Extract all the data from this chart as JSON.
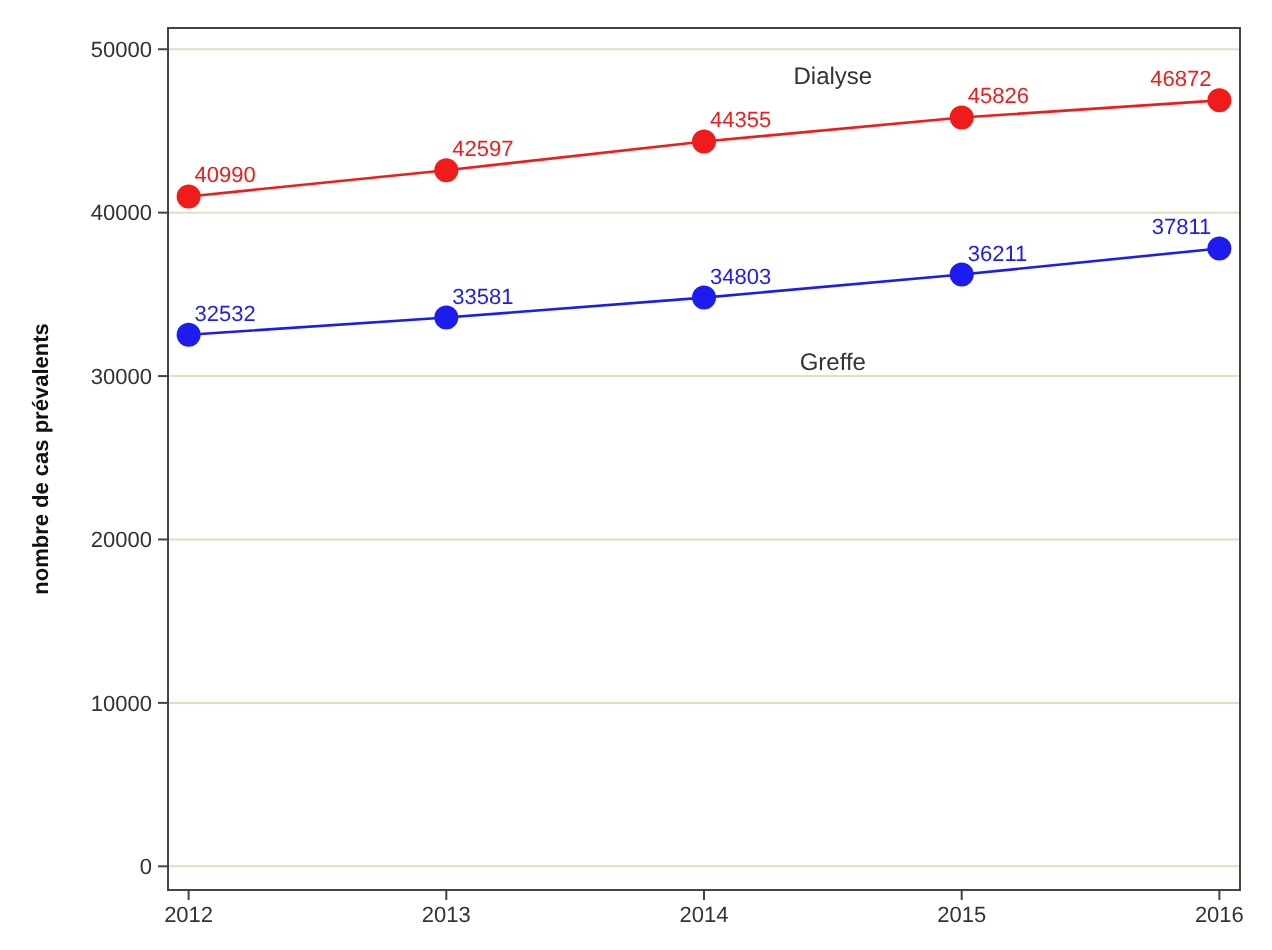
{
  "chart_data": {
    "type": "line",
    "ylabel": "nombre de cas prévalents",
    "x": [
      2012,
      2013,
      2014,
      2015,
      2016
    ],
    "xlim": [
      2011.92,
      2016.08
    ],
    "xticks": [
      2012,
      2013,
      2014,
      2015,
      2016
    ],
    "ylim": [
      -1450,
      51300
    ],
    "yticks": [
      0,
      10000,
      20000,
      30000,
      40000,
      50000
    ],
    "grid": "y",
    "marker": "circle",
    "line_style": "solid",
    "data_labels": true,
    "series": [
      {
        "name": "Dialyse",
        "color": "#f01c1c",
        "values": [
          40990,
          42597,
          44355,
          45826,
          46872
        ]
      },
      {
        "name": "Greffe",
        "color": "#1c1cf0",
        "values": [
          32532,
          33581,
          34803,
          36211,
          37811
        ]
      }
    ]
  }
}
